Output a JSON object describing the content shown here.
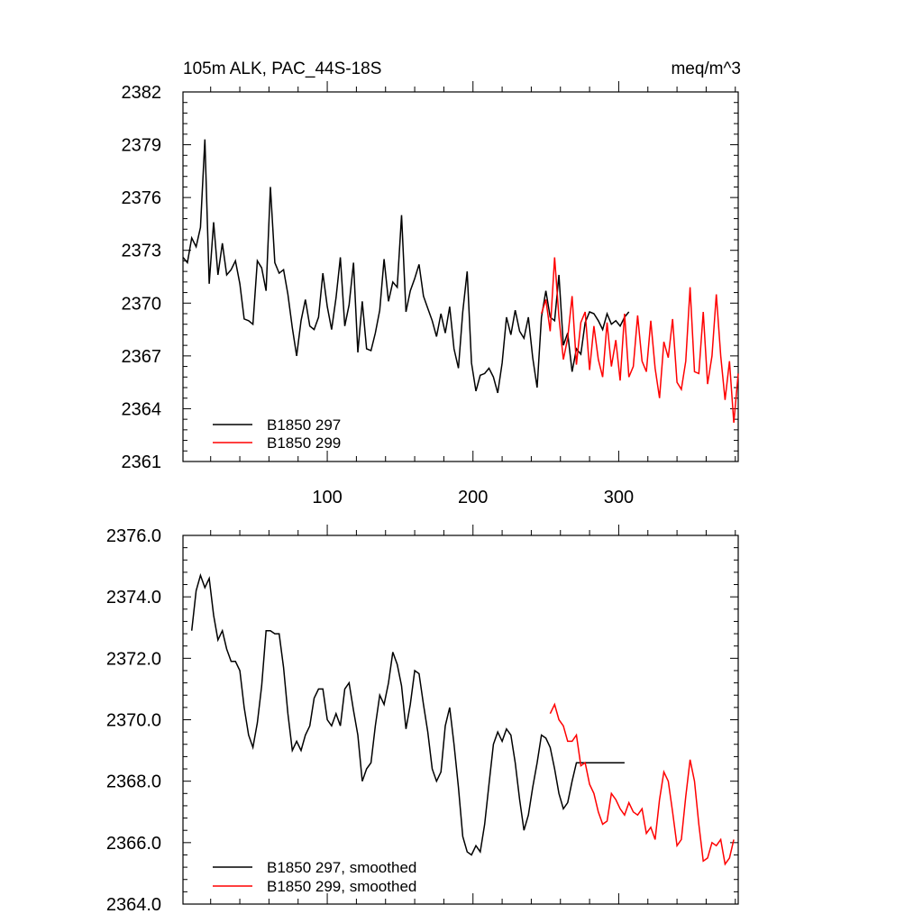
{
  "chart_data": [
    {
      "type": "line",
      "title": "105m ALK, PAC_44S-18S",
      "units": "meq/m^3",
      "xlim": [
        1,
        382
      ],
      "ylim": [
        2361,
        2382
      ],
      "yticks": [
        2361,
        2364,
        2367,
        2370,
        2373,
        2376,
        2379,
        2382
      ],
      "ytick_labels": [
        "2361",
        "2364",
        "2367",
        "2370",
        "2373",
        "2376",
        "2379",
        "2382"
      ],
      "xticks": [
        100,
        200,
        300
      ],
      "xtick_labels": [
        "100",
        "200",
        "300"
      ],
      "colors": {
        "black": "#000000",
        "red": "#ff0000"
      },
      "legend": {
        "placement": "bottom-left",
        "labels": [
          "B1850 297",
          "B1850 299"
        ]
      },
      "series": [
        {
          "name": "B1850 297",
          "color": "#000000",
          "x": [
            1,
            4,
            7,
            10,
            13,
            16,
            19,
            22,
            25,
            28,
            31,
            34,
            37,
            40,
            43,
            46,
            49,
            52,
            55,
            58,
            61,
            64,
            67,
            70,
            73,
            76,
            79,
            82,
            85,
            88,
            91,
            94,
            97,
            100,
            103,
            106,
            109,
            112,
            115,
            118,
            121,
            124,
            127,
            130,
            133,
            136,
            139,
            142,
            145,
            148,
            151,
            154,
            157,
            160,
            163,
            166,
            169,
            172,
            175,
            178,
            181,
            184,
            187,
            190,
            193,
            196,
            199,
            202,
            205,
            208,
            211,
            214,
            217,
            220,
            223,
            226,
            229,
            232,
            235,
            238,
            241,
            244,
            247,
            250,
            253,
            256,
            259,
            262,
            265,
            268,
            271,
            274,
            277,
            280,
            283,
            286,
            289,
            292,
            295,
            298,
            301,
            304,
            307
          ],
          "y": [
            2372.6,
            2372.3,
            2373.7,
            2373.2,
            2374.3,
            2379.3,
            2371.1,
            2374.6,
            2371.6,
            2373.4,
            2371.6,
            2371.9,
            2372.4,
            2371.1,
            2369.1,
            2369.0,
            2368.8,
            2372.4,
            2372.0,
            2370.7,
            2376.6,
            2372.3,
            2371.7,
            2371.9,
            2370.5,
            2368.6,
            2367.0,
            2369.0,
            2370.2,
            2368.7,
            2368.5,
            2369.2,
            2371.7,
            2369.8,
            2368.5,
            2370.3,
            2372.6,
            2368.7,
            2369.9,
            2372.3,
            2367.2,
            2370.1,
            2367.4,
            2367.3,
            2368.3,
            2369.6,
            2372.5,
            2370.1,
            2371.2,
            2370.9,
            2375.0,
            2369.5,
            2370.7,
            2371.4,
            2372.2,
            2370.4,
            2369.7,
            2369.0,
            2368.1,
            2369.4,
            2368.3,
            2369.8,
            2367.4,
            2366.3,
            2369.5,
            2371.8,
            2366.6,
            2365.0,
            2365.9,
            2366.0,
            2366.3,
            2365.8,
            2364.9,
            2366.6,
            2369.2,
            2368.2,
            2369.6,
            2368.4,
            2368.0,
            2369.2,
            2366.9,
            2365.2,
            2369.2,
            2370.7,
            2369.2,
            2369.0,
            2371.6,
            2367.6,
            2368.3,
            2366.1,
            2367.4,
            2367.1,
            2368.9,
            2369.5,
            2369.4,
            2369.0,
            2368.5,
            2369.4,
            2368.8,
            2369.0,
            2368.7,
            2369.2,
            2369.5
          ]
        },
        {
          "name": "B1850 299",
          "color": "#ff0000",
          "x": [
            247,
            250,
            253,
            256,
            259,
            262,
            265,
            268,
            271,
            274,
            277,
            280,
            283,
            286,
            289,
            292,
            295,
            298,
            301,
            304,
            307,
            310,
            313,
            316,
            319,
            322,
            325,
            328,
            331,
            334,
            337,
            340,
            343,
            346,
            349,
            352,
            355,
            358,
            361,
            364,
            367,
            370,
            373,
            376,
            379,
            382
          ],
          "y": [
            2369.4,
            2370.2,
            2368.4,
            2372.6,
            2369.2,
            2366.8,
            2368.0,
            2370.4,
            2366.5,
            2368.9,
            2369.5,
            2366.2,
            2368.7,
            2366.8,
            2365.8,
            2368.9,
            2366.4,
            2367.9,
            2365.6,
            2369.4,
            2365.8,
            2366.4,
            2369.3,
            2366.7,
            2366.1,
            2369.0,
            2366.3,
            2364.6,
            2367.8,
            2366.9,
            2369.1,
            2365.5,
            2365.1,
            2366.7,
            2370.9,
            2366.1,
            2366.0,
            2369.5,
            2365.4,
            2367.0,
            2370.5,
            2367.0,
            2364.5,
            2366.7,
            2363.2,
            2366.0
          ]
        }
      ]
    },
    {
      "type": "line",
      "title": "",
      "xlim": [
        1,
        382
      ],
      "ylim": [
        2364.0,
        2376.0
      ],
      "yticks": [
        2364.0,
        2366.0,
        2368.0,
        2370.0,
        2372.0,
        2374.0,
        2376.0
      ],
      "ytick_labels": [
        "2364.0",
        "2366.0",
        "2368.0",
        "2370.0",
        "2372.0",
        "2374.0",
        "2376.0"
      ],
      "xticks": [
        100,
        200,
        300
      ],
      "legend": {
        "placement": "bottom-left",
        "labels": [
          "B1850 297, smoothed",
          "B1850 299, smoothed"
        ]
      },
      "series": [
        {
          "name": "B1850 297, smoothed",
          "color": "#000000",
          "x": [
            7,
            10,
            13,
            16,
            19,
            22,
            25,
            28,
            31,
            34,
            37,
            40,
            43,
            46,
            49,
            52,
            55,
            58,
            61,
            64,
            67,
            70,
            73,
            76,
            79,
            82,
            85,
            88,
            91,
            94,
            97,
            100,
            103,
            106,
            109,
            112,
            115,
            118,
            121,
            124,
            127,
            130,
            133,
            136,
            139,
            142,
            145,
            148,
            151,
            154,
            157,
            160,
            163,
            166,
            169,
            172,
            175,
            178,
            181,
            184,
            187,
            190,
            193,
            196,
            199,
            202,
            205,
            208,
            211,
            214,
            217,
            220,
            223,
            226,
            229,
            232,
            235,
            238,
            241,
            244,
            247,
            250,
            253,
            256,
            259,
            262,
            265,
            268,
            271,
            274,
            277,
            280,
            283,
            286,
            289,
            292,
            295,
            298,
            301,
            304
          ],
          "y": [
            2372.9,
            2374.2,
            2374.7,
            2374.3,
            2374.6,
            2373.4,
            2372.6,
            2372.9,
            2372.3,
            2371.9,
            2371.9,
            2371.6,
            2370.4,
            2369.5,
            2369.1,
            2369.9,
            2371.1,
            2372.9,
            2372.9,
            2372.8,
            2372.8,
            2371.7,
            2370.2,
            2369.0,
            2369.3,
            2369.0,
            2369.5,
            2369.8,
            2370.7,
            2371.0,
            2371.0,
            2370.0,
            2369.8,
            2370.2,
            2369.8,
            2371.0,
            2371.2,
            2370.3,
            2369.5,
            2368.0,
            2368.4,
            2368.6,
            2369.8,
            2370.8,
            2370.5,
            2371.2,
            2372.2,
            2371.8,
            2371.1,
            2369.7,
            2370.5,
            2371.6,
            2371.5,
            2370.5,
            2369.6,
            2368.4,
            2368.0,
            2368.3,
            2369.8,
            2370.4,
            2369.2,
            2367.8,
            2366.2,
            2365.7,
            2365.6,
            2365.9,
            2365.7,
            2366.6,
            2367.9,
            2369.2,
            2369.6,
            2369.3,
            2369.7,
            2369.5,
            2368.6,
            2367.4,
            2366.4,
            2366.9,
            2367.8,
            2368.6,
            2369.5,
            2369.4,
            2369.1,
            2368.4,
            2367.6,
            2367.1,
            2367.3,
            2368.0,
            2368.6,
            2368.6,
            2368.6,
            2368.6,
            2368.6,
            2368.6,
            2368.6,
            2368.6,
            2368.6,
            2368.6,
            2368.6,
            2368.6
          ]
        },
        {
          "name": "B1850 299, smoothed",
          "color": "#ff0000",
          "x": [
            253,
            256,
            259,
            262,
            265,
            268,
            271,
            274,
            277,
            280,
            283,
            286,
            289,
            292,
            295,
            298,
            301,
            304,
            307,
            310,
            313,
            316,
            319,
            322,
            325,
            328,
            331,
            334,
            337,
            340,
            343,
            346,
            349,
            352,
            355,
            358,
            361,
            364,
            367,
            370,
            373,
            376,
            379
          ],
          "y": [
            2370.2,
            2370.5,
            2370.0,
            2369.8,
            2369.3,
            2369.3,
            2369.5,
            2368.5,
            2368.6,
            2367.9,
            2367.6,
            2367.0,
            2366.6,
            2366.7,
            2367.6,
            2367.4,
            2367.1,
            2366.9,
            2367.3,
            2367.0,
            2366.9,
            2367.1,
            2366.3,
            2366.5,
            2366.1,
            2367.4,
            2368.3,
            2368.0,
            2367.0,
            2365.9,
            2366.1,
            2367.5,
            2368.7,
            2368.0,
            2366.6,
            2365.4,
            2365.5,
            2366.0,
            2365.9,
            2366.1,
            2365.3,
            2365.5,
            2366.1
          ]
        }
      ]
    }
  ]
}
